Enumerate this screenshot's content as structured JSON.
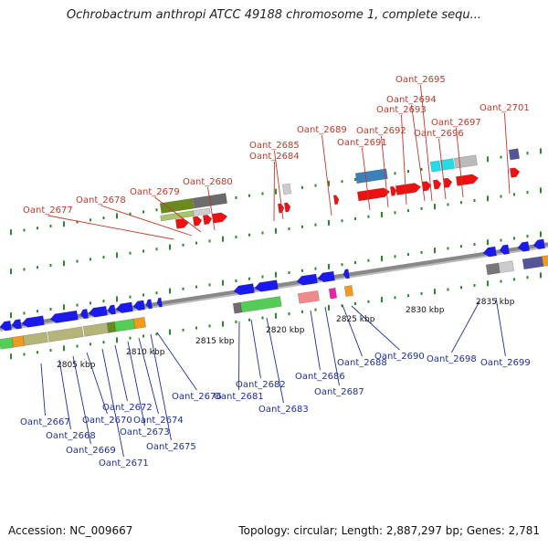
{
  "title": "Ochrobactrum anthropi ATCC 49188 chromosome 1, complete sequ...",
  "footer": {
    "accession": "Accession: NC_009667",
    "info": "Topology: circular; Length: 2,887,297 bp; Genes: 2,781"
  },
  "colors": {
    "forward_gene": "#ee1111",
    "reverse_gene": "#1a1aee",
    "top_label": "#c0392b",
    "bottom_label": "#1f2fa0",
    "backbone": "#888888",
    "tick": "#2a8a2a"
  },
  "kbp_ticks": [
    "2805 kbp",
    "2810 kbp",
    "2815 kbp",
    "2820 kbp",
    "2825 kbp",
    "2830 kbp",
    "2835 kbp"
  ],
  "top_labels": [
    "Oant_2677",
    "Oant_2678",
    "Oant_2679",
    "Oant_2680",
    "Oant_2684",
    "Oant_2685",
    "Oant_2689",
    "Oant_2691",
    "Oant_2692",
    "Oant_2693",
    "Oant_2694",
    "Oant_2695",
    "Oant_2696",
    "Oant_2697",
    "Oant_2701"
  ],
  "bottom_labels": [
    "Oant_2667",
    "Oant_2668",
    "Oant_2669",
    "Oant_2670",
    "Oant_2671",
    "Oant_2672",
    "Oant_2673",
    "Oant_2674",
    "Oant_2675",
    "Oant_2676",
    "Oant_2681",
    "Oant_2682",
    "Oant_2683",
    "Oant_2686",
    "Oant_2687",
    "Oant_2688",
    "Oant_2690",
    "Oant_2698",
    "Oant_2699"
  ]
}
